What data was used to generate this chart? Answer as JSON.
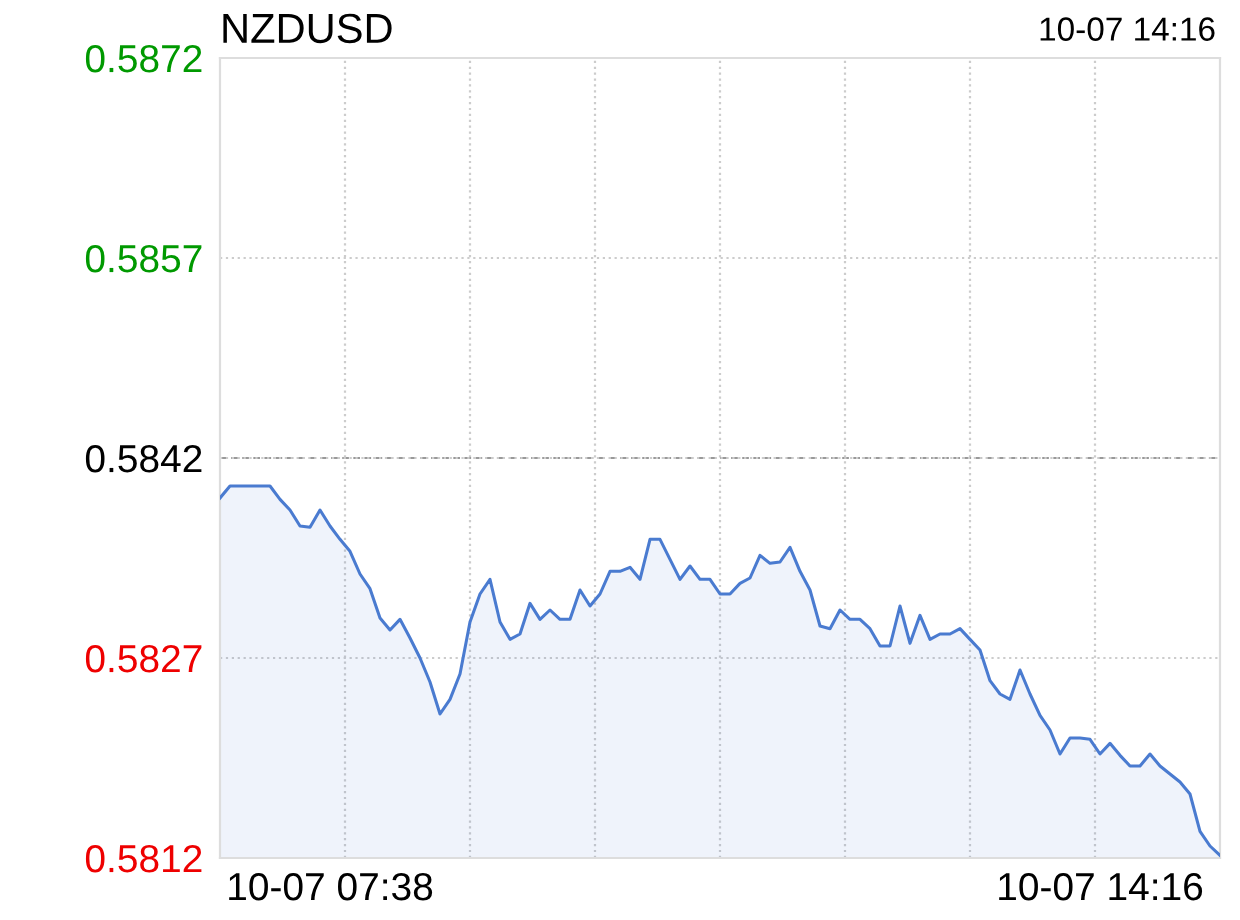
{
  "chart_data": {
    "type": "area",
    "title": "NZDUSD",
    "subtitle": "10-07 14:16",
    "categories": [
      null,
      null,
      null,
      null,
      null,
      null,
      null,
      null,
      null,
      null,
      null,
      "10-07 07:38",
      null,
      null,
      null,
      null,
      null,
      null,
      null,
      null,
      null,
      null,
      null,
      null,
      null,
      null,
      null,
      null,
      null,
      null,
      null,
      null,
      null,
      null,
      null,
      null,
      null,
      null,
      null,
      null,
      null,
      null,
      null,
      null,
      null,
      null,
      null,
      null,
      null,
      null,
      null,
      null,
      null,
      null,
      null,
      null,
      null,
      null,
      null,
      null,
      null,
      null,
      null,
      null,
      null,
      null,
      null,
      null,
      null,
      null,
      null,
      null,
      null,
      null,
      null,
      null,
      null,
      null,
      null,
      null,
      null,
      null,
      null,
      null,
      null,
      null,
      null,
      null,
      "10-07 14:16",
      null,
      null,
      null,
      null,
      null,
      null,
      null,
      null,
      null,
      null,
      null,
      null
    ],
    "ylim": [
      0.5812,
      0.5872
    ],
    "yticks": [
      {
        "value": 0.5812,
        "label": "0.5812"
      },
      {
        "value": 0.5827,
        "label": "0.5827"
      },
      {
        "value": 0.5842,
        "label": "0.5842"
      },
      {
        "value": 0.5857,
        "label": "0.5857"
      },
      {
        "value": 0.5872,
        "label": "0.5872"
      }
    ],
    "grid": true,
    "ref_lines": [
      {
        "axis": "y",
        "value": 0.5842,
        "color": "#999999",
        "line_style": "dashed"
      }
    ],
    "series": [
      {
        "color": "#4a7bd0",
        "values": [
          0.5839,
          0.58399,
          0.58399,
          0.58399,
          0.58399,
          0.58399,
          0.58389,
          0.58381,
          0.58369,
          0.58368,
          0.58381,
          0.58369,
          0.58359,
          0.5835,
          0.58333,
          0.58322,
          0.583,
          0.58291,
          0.58299,
          0.58285,
          0.5827,
          0.58252,
          0.58228,
          0.58239,
          0.58258,
          0.58297,
          0.58318,
          0.58329,
          0.58297,
          0.58284,
          0.58288,
          0.58311,
          0.58299,
          0.58306,
          0.58299,
          0.58299,
          0.58321,
          0.58309,
          0.58318,
          0.58335,
          0.58335,
          0.58338,
          0.58329,
          0.58359,
          0.58359,
          0.58344,
          0.58329,
          0.58339,
          0.58329,
          0.58329,
          0.58318,
          0.58318,
          0.58326,
          0.5833,
          0.58347,
          0.58341,
          0.58342,
          0.58353,
          0.58335,
          0.58321,
          0.58294,
          0.58292,
          0.58306,
          0.58299,
          0.58299,
          0.58292,
          0.58279,
          0.58279,
          0.58309,
          0.58281,
          0.58302,
          0.58284,
          0.58288,
          0.58288,
          0.58292,
          0.58284,
          0.58276,
          0.58253,
          0.58243,
          0.58239,
          0.58261,
          0.58243,
          0.58227,
          0.58216,
          0.58198,
          0.5821,
          0.5821,
          0.58209,
          0.58198,
          0.58206,
          0.58197,
          0.58189,
          0.58189,
          0.58198,
          0.58189,
          0.58183,
          0.58177,
          0.58168,
          0.5814,
          0.58129,
          0.58122
        ]
      }
    ]
  }
}
